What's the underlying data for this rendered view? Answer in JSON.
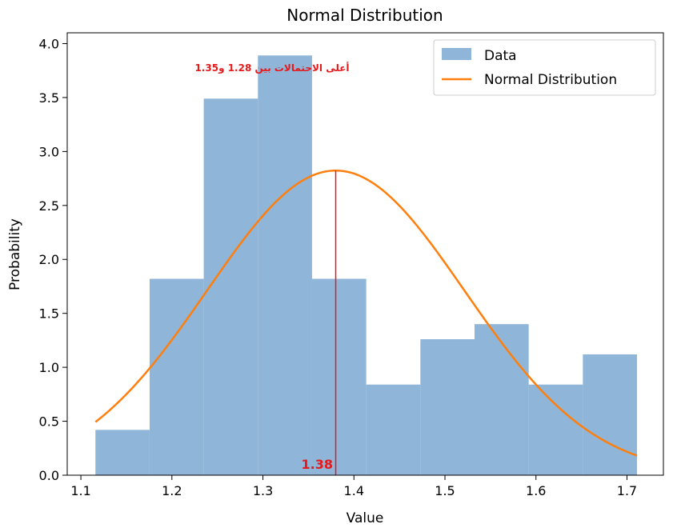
{
  "chart_data": {
    "type": "bar",
    "title": "Normal Distribution",
    "xlabel": "Value",
    "ylabel": "Probability",
    "xlim": [
      1.085,
      1.74
    ],
    "ylim": [
      0,
      4.1
    ],
    "xticks": [
      "1.1",
      "1.2",
      "1.3",
      "1.4",
      "1.5",
      "1.6",
      "1.7"
    ],
    "yticks": [
      "0.0",
      "0.5",
      "1.0",
      "1.5",
      "2.0",
      "2.5",
      "3.0",
      "3.5",
      "4.0"
    ],
    "legend_position": "top-right",
    "legend": [
      "Data",
      "Normal Distribution"
    ],
    "histogram": {
      "name": "Data",
      "color": "#8fb5d8",
      "bin_edges": [
        1.116,
        1.1755,
        1.235,
        1.2945,
        1.354,
        1.4135,
        1.473,
        1.5325,
        1.592,
        1.6515,
        1.711
      ],
      "values": [
        0.42,
        1.82,
        3.49,
        3.89,
        1.82,
        0.84,
        1.26,
        1.4,
        0.84,
        1.12
      ]
    },
    "curve": {
      "name": "Normal Distribution",
      "color": "#ff7f0e",
      "mean": 1.38,
      "std": 0.1413,
      "x_range": [
        1.116,
        1.711
      ]
    },
    "mean_line": {
      "x": 1.38,
      "label": "1.38",
      "color": "#e41a1c"
    },
    "annotation": {
      "text": "أعلى الاحتمالات بين 1.28 و1.35",
      "x": 1.3,
      "y": 3.75,
      "color": "#e41a1c"
    }
  }
}
